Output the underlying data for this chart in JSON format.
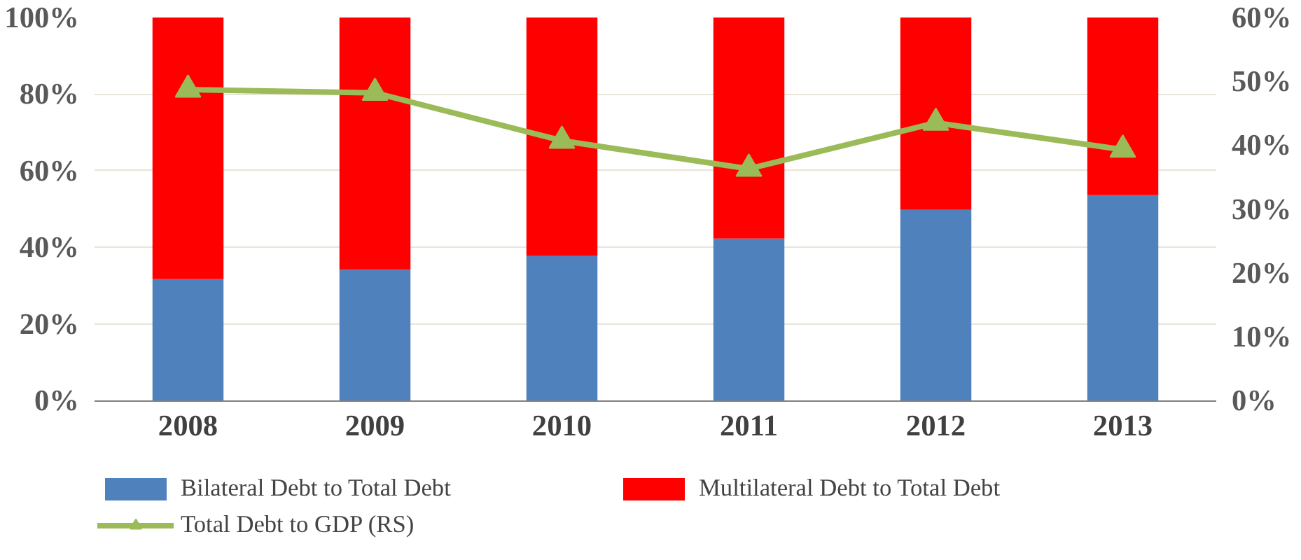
{
  "chart_data": {
    "type": "bar",
    "stacked": true,
    "categories": [
      "2008",
      "2009",
      "2010",
      "2011",
      "2012",
      "2013"
    ],
    "series": [
      {
        "name": "Bilateral Debt to Total Debt",
        "color": "#4f81bd",
        "values": [
          31.7,
          34.1,
          37.7,
          42.3,
          49.8,
          53.6
        ]
      },
      {
        "name": "Multilateral Debt to Total Debt",
        "color": "#ff0000",
        "values": [
          68.3,
          65.9,
          62.3,
          57.7,
          50.2,
          46.4
        ]
      },
      {
        "name": "Total Debt to GDP (RS)",
        "type": "line",
        "axis": "y2",
        "color": "#9bbb59",
        "marker": "triangle",
        "values": [
          48.7,
          48.2,
          40.7,
          36.3,
          43.5,
          39.3
        ]
      }
    ],
    "ylim": [
      0,
      100
    ],
    "yticks": [
      {
        "value": 0,
        "label": "0%"
      },
      {
        "value": 20,
        "label": "20%"
      },
      {
        "value": 40,
        "label": "40%"
      },
      {
        "value": 60,
        "label": "60%"
      },
      {
        "value": 80,
        "label": "80%"
      },
      {
        "value": 100,
        "label": "100%"
      }
    ],
    "y2lim": [
      0,
      60
    ],
    "y2ticks": [
      {
        "value": 0,
        "label": "0%"
      },
      {
        "value": 10,
        "label": "10%"
      },
      {
        "value": 20,
        "label": "20%"
      },
      {
        "value": 30,
        "label": "30%"
      },
      {
        "value": 40,
        "label": "40%"
      },
      {
        "value": 50,
        "label": "50%"
      },
      {
        "value": 60,
        "label": "60%"
      }
    ],
    "grid": "y",
    "legend": "bottom"
  }
}
